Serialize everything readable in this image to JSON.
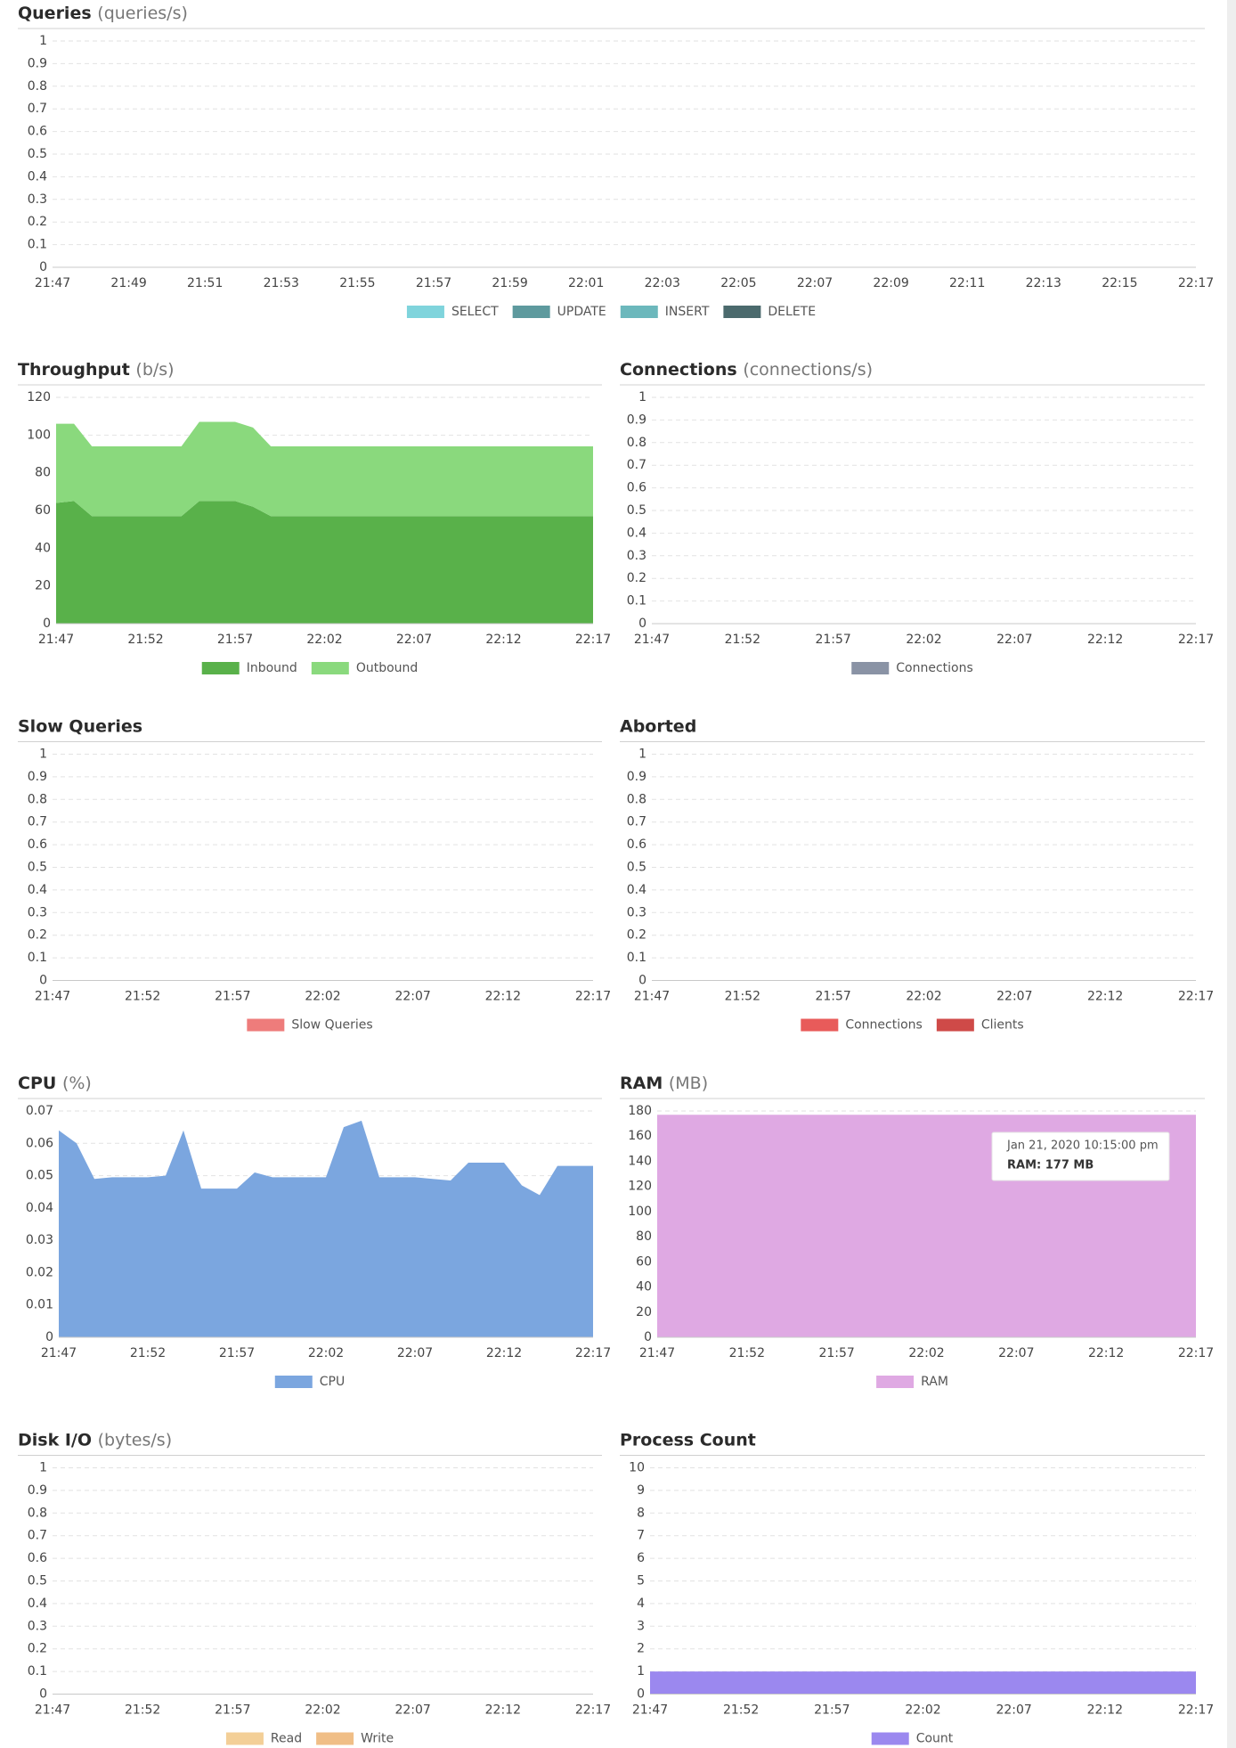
{
  "chart_data": [
    {
      "type": "area",
      "title": "Queries",
      "unit": "(queries/s)",
      "categories": [
        "21:47",
        null,
        "21:49",
        null,
        "21:51",
        null,
        "21:53",
        null,
        "21:55",
        null,
        "21:57",
        null,
        "21:59",
        null,
        "22:01",
        null,
        "22:03",
        null,
        "22:05",
        null,
        "22:07",
        null,
        "22:09",
        null,
        "22:11",
        null,
        "22:13",
        null,
        "22:15",
        null,
        "22:17"
      ],
      "ylim": [
        0,
        1
      ],
      "yticks": [
        0,
        0.1,
        0.2,
        0.3,
        0.4,
        0.5,
        0.6,
        0.7,
        0.8,
        0.9,
        1
      ],
      "grid": true,
      "series": [
        {
          "name": "SELECT",
          "color": "#7fd4dc"
        },
        {
          "name": "UPDATE",
          "color": "#5e9a9e"
        },
        {
          "name": "INSERT",
          "color": "#6cb8bc"
        },
        {
          "name": "DELETE",
          "color": "#4b6a6d"
        }
      ]
    },
    {
      "type": "area",
      "title": "Throughput",
      "unit": "(b/s)",
      "categories": [
        "21:47",
        null,
        null,
        null,
        null,
        "21:52",
        null,
        null,
        null,
        null,
        "21:57",
        null,
        null,
        null,
        null,
        "22:02",
        null,
        null,
        null,
        null,
        "22:07",
        null,
        null,
        null,
        null,
        "22:12",
        null,
        null,
        null,
        null,
        "22:17"
      ],
      "ylim": [
        0,
        120
      ],
      "yticks": [
        0,
        20,
        40,
        60,
        80,
        100,
        120
      ],
      "grid": true,
      "series": [
        {
          "name": "Inbound",
          "color": "#59b14a",
          "values": [
            64,
            65,
            57,
            57,
            57,
            57,
            57,
            57,
            65,
            65,
            65,
            62,
            57,
            57,
            57,
            57,
            57,
            57,
            57,
            57,
            57,
            57,
            57,
            57,
            57,
            57,
            57,
            57,
            57,
            57,
            57
          ]
        },
        {
          "name": "Outbound",
          "color": "#8ad97d",
          "values": [
            42,
            41,
            37,
            37,
            37,
            37,
            37,
            37,
            42,
            42,
            42,
            42,
            37,
            37,
            37,
            37,
            37,
            37,
            37,
            37,
            37,
            37,
            37,
            37,
            37,
            37,
            37,
            37,
            37,
            37,
            37
          ]
        }
      ]
    },
    {
      "type": "area",
      "title": "Connections",
      "unit": "(connections/s)",
      "categories": [
        "21:47",
        null,
        null,
        null,
        null,
        "21:52",
        null,
        null,
        null,
        null,
        "21:57",
        null,
        null,
        null,
        null,
        "22:02",
        null,
        null,
        null,
        null,
        "22:07",
        null,
        null,
        null,
        null,
        "22:12",
        null,
        null,
        null,
        null,
        "22:17"
      ],
      "ylim": [
        0,
        1
      ],
      "yticks": [
        0,
        0.1,
        0.2,
        0.3,
        0.4,
        0.5,
        0.6,
        0.7,
        0.8,
        0.9,
        1
      ],
      "grid": true,
      "series": [
        {
          "name": "Connections",
          "color": "#8a93a5"
        }
      ]
    },
    {
      "type": "area",
      "title": "Slow Queries",
      "categories": [
        "21:47",
        null,
        null,
        null,
        null,
        "21:52",
        null,
        null,
        null,
        null,
        "21:57",
        null,
        null,
        null,
        null,
        "22:02",
        null,
        null,
        null,
        null,
        "22:07",
        null,
        null,
        null,
        null,
        "22:12",
        null,
        null,
        null,
        null,
        "22:17"
      ],
      "ylim": [
        0,
        1
      ],
      "yticks": [
        0,
        0.1,
        0.2,
        0.3,
        0.4,
        0.5,
        0.6,
        0.7,
        0.8,
        0.9,
        1
      ],
      "grid": true,
      "series": [
        {
          "name": "Slow Queries",
          "color": "#ee7c7b"
        }
      ]
    },
    {
      "type": "area",
      "title": "Aborted",
      "categories": [
        "21:47",
        null,
        null,
        null,
        null,
        "21:52",
        null,
        null,
        null,
        null,
        "21:57",
        null,
        null,
        null,
        null,
        "22:02",
        null,
        null,
        null,
        null,
        "22:07",
        null,
        null,
        null,
        null,
        "22:12",
        null,
        null,
        null,
        null,
        "22:17"
      ],
      "ylim": [
        0,
        1
      ],
      "yticks": [
        0,
        0.1,
        0.2,
        0.3,
        0.4,
        0.5,
        0.6,
        0.7,
        0.8,
        0.9,
        1
      ],
      "grid": true,
      "series": [
        {
          "name": "Connections",
          "color": "#e85b5a"
        },
        {
          "name": "Clients",
          "color": "#cf4a48"
        }
      ]
    },
    {
      "type": "area",
      "title": "CPU",
      "unit": "(%)",
      "categories": [
        "21:47",
        null,
        null,
        null,
        null,
        "21:52",
        null,
        null,
        null,
        null,
        "21:57",
        null,
        null,
        null,
        null,
        "22:02",
        null,
        null,
        null,
        null,
        "22:07",
        null,
        null,
        null,
        null,
        "22:12",
        null,
        null,
        null,
        null,
        "22:17"
      ],
      "ylim": [
        0,
        0.07
      ],
      "yticks": [
        0,
        0.01,
        0.02,
        0.03,
        0.04,
        0.05,
        0.06,
        0.07
      ],
      "grid": true,
      "series": [
        {
          "name": "CPU",
          "color": "#7ba6df",
          "values": [
            0.064,
            0.06,
            0.049,
            0.0495,
            0.0495,
            0.0495,
            0.05,
            0.064,
            0.046,
            0.046,
            0.046,
            0.051,
            0.0495,
            0.0495,
            0.0495,
            0.0495,
            0.065,
            0.067,
            0.0495,
            0.0495,
            0.0495,
            0.049,
            0.0485,
            0.054,
            0.054,
            0.054,
            0.047,
            0.044,
            0.053,
            0.053,
            0.053
          ]
        }
      ]
    },
    {
      "type": "area",
      "title": "RAM",
      "unit": "(MB)",
      "categories": [
        "21:47",
        null,
        null,
        null,
        null,
        "21:52",
        null,
        null,
        null,
        null,
        "21:57",
        null,
        null,
        null,
        null,
        "22:02",
        null,
        null,
        null,
        null,
        "22:07",
        null,
        null,
        null,
        null,
        "22:12",
        null,
        null,
        null,
        null,
        "22:17"
      ],
      "ylim": [
        0,
        180
      ],
      "yticks": [
        0,
        20,
        40,
        60,
        80,
        100,
        120,
        140,
        160,
        180
      ],
      "grid": true,
      "series": [
        {
          "name": "RAM",
          "color": "#dfa9e3",
          "values": [
            177,
            177,
            177,
            177,
            177,
            177,
            177,
            177,
            177,
            177,
            177,
            177,
            177,
            177,
            177,
            177,
            177,
            177,
            177,
            177,
            177,
            177,
            177,
            177,
            177,
            177,
            177,
            177,
            177,
            177,
            177
          ]
        }
      ],
      "annotations": [
        "Jan 21, 2020 10:15:00 pm",
        "RAM: 177 MB"
      ]
    },
    {
      "type": "area",
      "title": "Disk I/O",
      "unit": "(bytes/s)",
      "categories": [
        "21:47",
        null,
        null,
        null,
        null,
        "21:52",
        null,
        null,
        null,
        null,
        "21:57",
        null,
        null,
        null,
        null,
        "22:02",
        null,
        null,
        null,
        null,
        "22:07",
        null,
        null,
        null,
        null,
        "22:12",
        null,
        null,
        null,
        null,
        "22:17"
      ],
      "ylim": [
        0,
        1
      ],
      "yticks": [
        0,
        0.1,
        0.2,
        0.3,
        0.4,
        0.5,
        0.6,
        0.7,
        0.8,
        0.9,
        1
      ],
      "grid": true,
      "series": [
        {
          "name": "Read",
          "color": "#f3cf97"
        },
        {
          "name": "Write",
          "color": "#f0be86"
        }
      ]
    },
    {
      "type": "area",
      "title": "Process Count",
      "categories": [
        "21:47",
        null,
        null,
        null,
        null,
        "21:52",
        null,
        null,
        null,
        null,
        "21:57",
        null,
        null,
        null,
        null,
        "22:02",
        null,
        null,
        null,
        null,
        "22:07",
        null,
        null,
        null,
        null,
        "22:12",
        null,
        null,
        null,
        null,
        "22:17"
      ],
      "ylim": [
        0,
        10
      ],
      "yticks": [
        0,
        1,
        2,
        3,
        4,
        5,
        6,
        7,
        8,
        9,
        10
      ],
      "grid": true,
      "series": [
        {
          "name": "Count",
          "color": "#9b88ef",
          "values": [
            1,
            1,
            1,
            1,
            1,
            1,
            1,
            1,
            1,
            1,
            1,
            1,
            1,
            1,
            1,
            1,
            1,
            1,
            1,
            1,
            1,
            1,
            1,
            1,
            1,
            1,
            1,
            1,
            1,
            1,
            1
          ]
        }
      ]
    }
  ]
}
